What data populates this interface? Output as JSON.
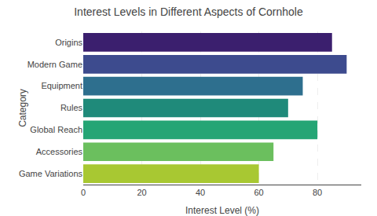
{
  "chart_data": {
    "type": "bar",
    "orientation": "horizontal",
    "title": "Interest Levels in Different Aspects of Cornhole",
    "xlabel": "Interest Level (%)",
    "ylabel": "Category",
    "categories": [
      "Origins",
      "Modern Game",
      "Equipment",
      "Rules",
      "Global Reach",
      "Accessories",
      "Game Variations"
    ],
    "values": [
      85,
      90,
      75,
      70,
      80,
      65,
      60
    ],
    "colors": [
      "#3b1f6e",
      "#3d4b8e",
      "#2e6f8e",
      "#1f8a7a",
      "#25a575",
      "#6bbf5e",
      "#a8c832"
    ],
    "xlim": [
      0,
      95
    ],
    "xticks": [
      0,
      20,
      40,
      60,
      80
    ],
    "grid": true
  }
}
